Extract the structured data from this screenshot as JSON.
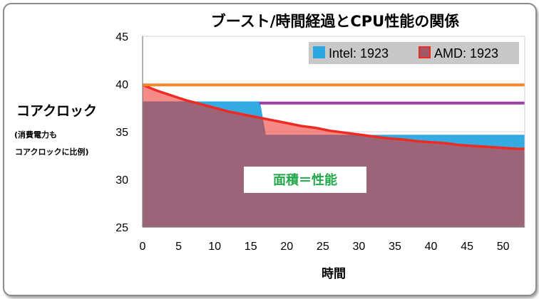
{
  "chart_data": {
    "type": "area",
    "title": "ブースト/時間経過とCPU性能の関係",
    "xlabel": "時間",
    "ylabel": "コアクロック",
    "ylabel_note_line1": "(消費電力も",
    "ylabel_note_line2": "コアクロックに比例)",
    "xlim": [
      0,
      53
    ],
    "ylim": [
      25,
      45
    ],
    "x_ticks": [
      "0",
      "5",
      "10",
      "15",
      "20",
      "25",
      "30",
      "35",
      "40",
      "45",
      "50"
    ],
    "y_ticks": [
      "25",
      "30",
      "35",
      "40",
      "45"
    ],
    "grid": "horizontal",
    "legend_position": "top-right",
    "series": [
      {
        "name": "Intel: 1923",
        "type": "area",
        "color": "#2aa6e0",
        "x": [
          0,
          16.2,
          17.0,
          53
        ],
        "y": [
          38.1,
          38.1,
          34.6,
          34.6
        ]
      },
      {
        "name": "AMD: 1923",
        "type": "area",
        "color": "#ee2a22",
        "x": [
          0,
          2,
          4,
          6,
          8,
          10,
          12,
          14,
          16,
          18,
          20,
          22,
          24,
          26,
          28,
          30,
          32,
          34,
          36,
          38,
          40,
          42,
          44,
          46,
          48,
          50,
          52,
          53
        ],
        "y": [
          39.9,
          39.3,
          38.8,
          38.3,
          37.9,
          37.5,
          37.1,
          36.8,
          36.5,
          36.2,
          35.9,
          35.6,
          35.4,
          35.1,
          34.9,
          34.7,
          34.5,
          34.3,
          34.2,
          34.0,
          33.9,
          33.8,
          33.6,
          33.5,
          33.4,
          33.3,
          33.2,
          33.2
        ]
      },
      {
        "name": "",
        "type": "line",
        "color": "#f2852e",
        "x": [
          0,
          53
        ],
        "y": [
          39.9,
          39.9
        ]
      },
      {
        "name": "",
        "type": "line",
        "color": "#9b3fa6",
        "x": [
          16.2,
          53
        ],
        "y": [
          38.0,
          38.0
        ]
      }
    ],
    "annotations": [
      {
        "text": "面積＝性能",
        "color": "#22a84a"
      }
    ]
  }
}
